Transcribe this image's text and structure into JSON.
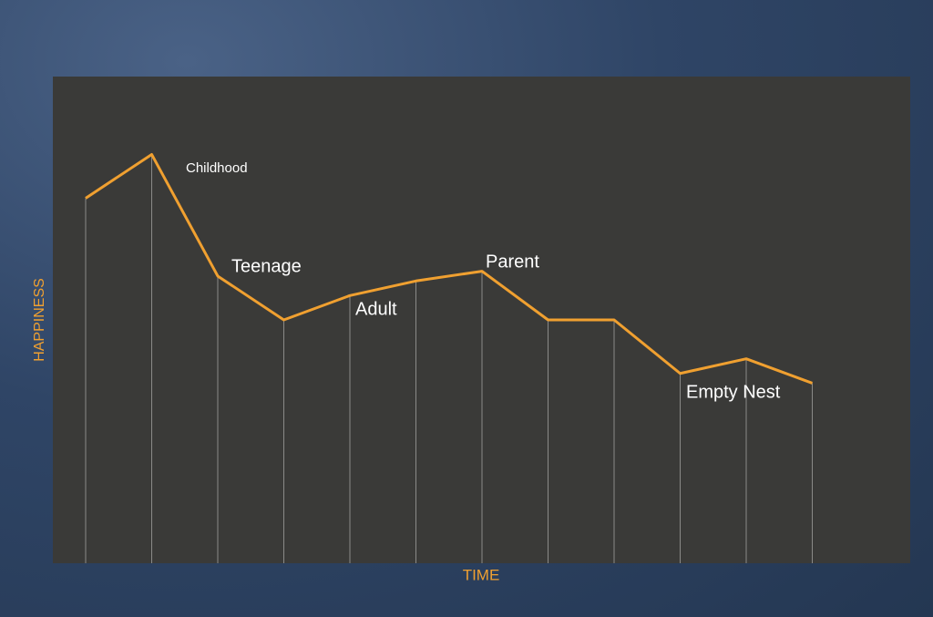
{
  "chart_data": {
    "type": "line",
    "x_label": "TIME",
    "y_label": "HAPPINESS",
    "categories": [
      null,
      null,
      null,
      null,
      null,
      null,
      null,
      null,
      null,
      null,
      null,
      null
    ],
    "values": [
      75,
      84,
      59,
      50,
      55,
      58,
      60,
      50,
      50,
      39,
      42,
      37
    ],
    "color": "#f0a030",
    "ylim": [
      0,
      100
    ],
    "annotations": [
      "Childhood",
      "Teenage",
      "Adult",
      "Parent",
      "Empty Nest"
    ]
  }
}
